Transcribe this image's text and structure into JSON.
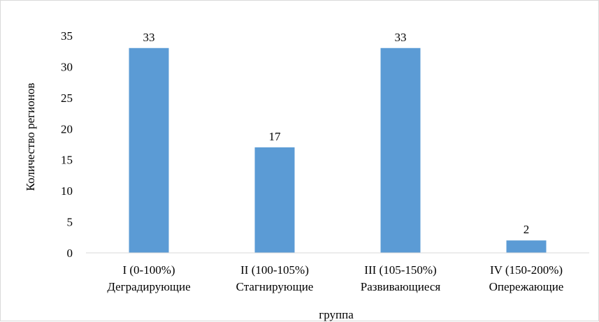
{
  "chart_data": {
    "type": "bar",
    "categories": [
      [
        "I (0-100%)",
        "Деградирующие"
      ],
      [
        "II (100-105%)",
        "Стагнирующие"
      ],
      [
        "III (105-150%)",
        "Развивающиеся"
      ],
      [
        "IV (150-200%)",
        "Опережающие"
      ]
    ],
    "values": [
      33,
      17,
      33,
      2
    ],
    "data_labels": [
      "33",
      "17",
      "33",
      "2"
    ],
    "xlabel": "группа",
    "ylabel": "Количество регионов",
    "ylim": [
      0,
      35
    ],
    "yticks": [
      "0",
      "5",
      "10",
      "15",
      "20",
      "25",
      "30",
      "35"
    ],
    "grid": false,
    "legend": "none",
    "bar_color": "#5b9bd5"
  }
}
